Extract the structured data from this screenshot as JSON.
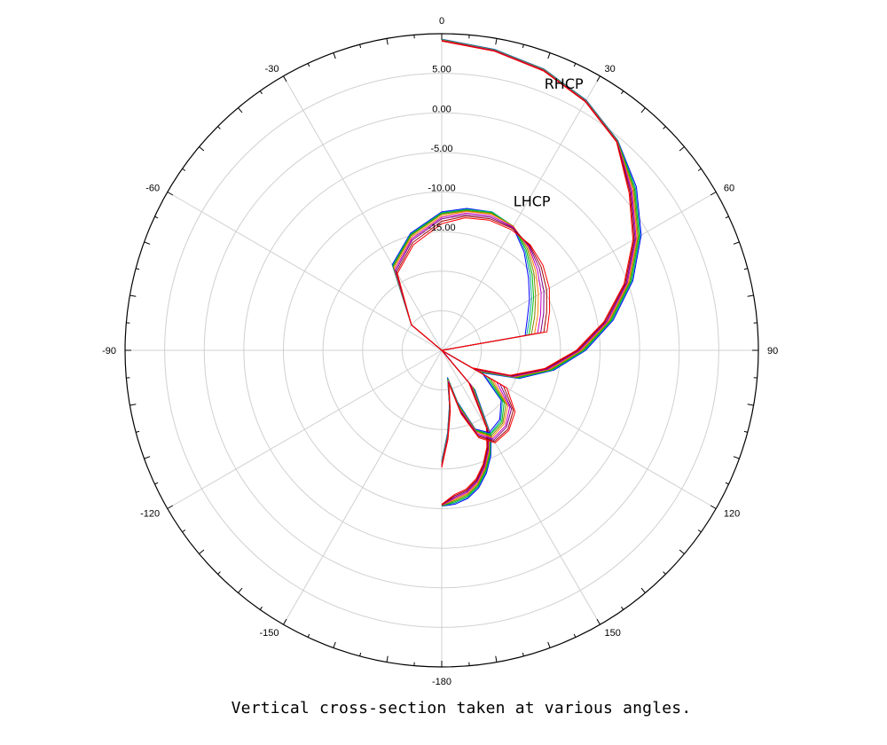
{
  "caption": "Vertical cross-section taken at various angles.",
  "chart_data": {
    "type": "polar-line",
    "title": "",
    "angle_unit": "degrees",
    "angle_direction": "clockwise",
    "zero_direction": "top",
    "angle_range": [
      -180,
      180
    ],
    "angle_tick_labels": [
      "0",
      "30",
      "60",
      "90",
      "120",
      "150",
      "-180",
      "-150",
      "-120",
      "-90",
      "-60",
      "-30"
    ],
    "angle_tick_values": [
      0,
      30,
      60,
      90,
      120,
      150,
      180,
      -150,
      -120,
      -90,
      -60,
      -30
    ],
    "radial_range": [
      -30,
      10
    ],
    "radial_tick_labels": [
      "5.00",
      "0.00",
      "-5.00",
      "-10.00",
      "-15.00"
    ],
    "radial_tick_values": [
      5,
      0,
      -5,
      -10,
      -15
    ],
    "grid": true,
    "annotations": [
      {
        "text": "RHCP",
        "angle": 25,
        "r": 6.5
      },
      {
        "text": "LHCP",
        "angle": 32,
        "r": -8.5
      }
    ],
    "series_colors": [
      "#0000ff",
      "#00a0a0",
      "#00c000",
      "#808000",
      "#ff8000",
      "#c000c0",
      "#800080",
      "#a00000",
      "#ff0000"
    ],
    "series_group_rhcp": {
      "points": [
        [
          0,
          9.3
        ],
        [
          10,
          8.6
        ],
        [
          20,
          7.8
        ],
        [
          30,
          6.5
        ],
        [
          40,
          4.6
        ],
        [
          50,
          2.1
        ],
        [
          60,
          -0.9
        ],
        [
          70,
          -4.3
        ],
        [
          80,
          -8.0
        ],
        [
          90,
          -11.8
        ],
        [
          100,
          -15.6
        ],
        [
          110,
          -19.6
        ],
        [
          120,
          -24.4
        ],
        [
          130,
          -29.8
        ],
        [
          140,
          -23.5
        ],
        [
          150,
          -17.5
        ],
        [
          155,
          -15.3
        ],
        [
          160,
          -13.5
        ],
        [
          165,
          -12.0
        ],
        [
          170,
          -11.0
        ],
        [
          175,
          -10.5
        ],
        [
          180,
          -10.3
        ]
      ],
      "series_offsets": [
        0,
        0.15,
        0.3,
        0.45,
        0.6,
        0.75,
        0.9,
        1.05,
        1.2
      ]
    },
    "series_group_lhcp": {
      "series": [
        {
          "points": [
            [
              -90,
              -30
            ],
            [
              -50,
              -25
            ],
            [
              -30,
              -17.5
            ],
            [
              -15,
              -14.7
            ],
            [
              0,
              -12.5
            ],
            [
              10,
              -11.8
            ],
            [
              20,
              -11.4
            ],
            [
              30,
              -12.0
            ],
            [
              40,
              -13.8
            ],
            [
              50,
              -15.7
            ],
            [
              60,
              -17.2
            ],
            [
              70,
              -18.5
            ],
            [
              80,
              -19.3
            ],
            [
              90,
              -30
            ],
            [
              120,
              -24.0
            ],
            [
              130,
              -20.2
            ],
            [
              140,
              -18.6
            ],
            [
              150,
              -18.0
            ],
            [
              157,
              -19.2
            ],
            [
              163,
              -23.2
            ],
            [
              168,
              -26.5
            ],
            [
              172,
              -23.0
            ],
            [
              176,
              -19.5
            ],
            [
              180,
              -16.0
            ]
          ]
        },
        {
          "points": [
            [
              -90,
              -30
            ],
            [
              -50,
              -25
            ],
            [
              -30,
              -17.6
            ],
            [
              -15,
              -14.8
            ],
            [
              0,
              -12.6
            ],
            [
              10,
              -11.9
            ],
            [
              20,
              -11.4
            ],
            [
              30,
              -11.9
            ],
            [
              40,
              -13.6
            ],
            [
              50,
              -15.4
            ],
            [
              60,
              -16.9
            ],
            [
              70,
              -18.2
            ],
            [
              80,
              -19.1
            ],
            [
              90,
              -30
            ],
            [
              120,
              -23.7
            ],
            [
              130,
              -20.0
            ],
            [
              140,
              -18.4
            ],
            [
              150,
              -17.8
            ],
            [
              157,
              -19.1
            ],
            [
              163,
              -23.0
            ],
            [
              168,
              -26.4
            ],
            [
              172,
              -22.9
            ],
            [
              176,
              -19.4
            ],
            [
              180,
              -15.9
            ]
          ]
        },
        {
          "points": [
            [
              -90,
              -30
            ],
            [
              -50,
              -25
            ],
            [
              -30,
              -17.7
            ],
            [
              -15,
              -14.9
            ],
            [
              0,
              -12.7
            ],
            [
              10,
              -12.0
            ],
            [
              20,
              -11.5
            ],
            [
              30,
              -11.9
            ],
            [
              40,
              -13.4
            ],
            [
              50,
              -15.1
            ],
            [
              60,
              -16.6
            ],
            [
              70,
              -17.9
            ],
            [
              80,
              -18.8
            ],
            [
              90,
              -30
            ],
            [
              120,
              -23.3
            ],
            [
              130,
              -19.7
            ],
            [
              140,
              -18.2
            ],
            [
              150,
              -17.7
            ],
            [
              157,
              -19.0
            ],
            [
              163,
              -22.8
            ],
            [
              168,
              -26.3
            ],
            [
              172,
              -22.8
            ],
            [
              176,
              -19.3
            ],
            [
              180,
              -15.8
            ]
          ]
        },
        {
          "points": [
            [
              -90,
              -30
            ],
            [
              -50,
              -25
            ],
            [
              -30,
              -17.8
            ],
            [
              -15,
              -15.0
            ],
            [
              0,
              -12.8
            ],
            [
              10,
              -12.1
            ],
            [
              20,
              -11.6
            ],
            [
              30,
              -11.9
            ],
            [
              40,
              -13.2
            ],
            [
              50,
              -14.8
            ],
            [
              60,
              -16.3
            ],
            [
              70,
              -17.5
            ],
            [
              80,
              -18.5
            ],
            [
              90,
              -30
            ],
            [
              120,
              -22.9
            ],
            [
              130,
              -19.4
            ],
            [
              140,
              -18.0
            ],
            [
              150,
              -17.5
            ],
            [
              157,
              -18.9
            ],
            [
              163,
              -22.6
            ],
            [
              168,
              -26.2
            ],
            [
              172,
              -22.7
            ],
            [
              176,
              -19.2
            ],
            [
              180,
              -15.7
            ]
          ]
        },
        {
          "points": [
            [
              -90,
              -30
            ],
            [
              -50,
              -25
            ],
            [
              -30,
              -18.0
            ],
            [
              -15,
              -15.2
            ],
            [
              0,
              -13.0
            ],
            [
              10,
              -12.2
            ],
            [
              20,
              -11.7
            ],
            [
              30,
              -11.9
            ],
            [
              40,
              -13.0
            ],
            [
              50,
              -14.5
            ],
            [
              60,
              -15.9
            ],
            [
              70,
              -17.1
            ],
            [
              80,
              -18.1
            ],
            [
              90,
              -30
            ],
            [
              120,
              -22.5
            ],
            [
              130,
              -19.1
            ],
            [
              140,
              -17.8
            ],
            [
              150,
              -17.3
            ],
            [
              157,
              -18.8
            ],
            [
              163,
              -22.4
            ],
            [
              168,
              -26.1
            ],
            [
              172,
              -22.6
            ],
            [
              176,
              -19.1
            ],
            [
              180,
              -15.6
            ]
          ]
        },
        {
          "points": [
            [
              -90,
              -30
            ],
            [
              -50,
              -25
            ],
            [
              -30,
              -18.2
            ],
            [
              -15,
              -15.4
            ],
            [
              0,
              -13.2
            ],
            [
              10,
              -12.4
            ],
            [
              20,
              -11.9
            ],
            [
              30,
              -12.0
            ],
            [
              40,
              -12.9
            ],
            [
              50,
              -14.2
            ],
            [
              60,
              -15.5
            ],
            [
              70,
              -16.7
            ],
            [
              80,
              -17.7
            ],
            [
              90,
              -30
            ],
            [
              120,
              -22.0
            ],
            [
              130,
              -18.8
            ],
            [
              140,
              -17.5
            ],
            [
              150,
              -17.1
            ],
            [
              157,
              -18.6
            ],
            [
              163,
              -22.2
            ],
            [
              168,
              -26.0
            ],
            [
              172,
              -22.5
            ],
            [
              176,
              -19.0
            ],
            [
              180,
              -15.5
            ]
          ]
        },
        {
          "points": [
            [
              -90,
              -30
            ],
            [
              -50,
              -25
            ],
            [
              -30,
              -18.4
            ],
            [
              -15,
              -15.6
            ],
            [
              0,
              -13.4
            ],
            [
              10,
              -12.6
            ],
            [
              20,
              -12.1
            ],
            [
              30,
              -12.1
            ],
            [
              40,
              -12.8
            ],
            [
              50,
              -13.9
            ],
            [
              60,
              -15.1
            ],
            [
              70,
              -16.3
            ],
            [
              80,
              -17.3
            ],
            [
              90,
              -30
            ],
            [
              120,
              -21.5
            ],
            [
              130,
              -18.5
            ],
            [
              140,
              -17.3
            ],
            [
              150,
              -16.9
            ],
            [
              157,
              -18.4
            ],
            [
              163,
              -22.0
            ],
            [
              168,
              -25.9
            ],
            [
              172,
              -22.4
            ],
            [
              176,
              -18.9
            ],
            [
              180,
              -15.4
            ]
          ]
        },
        {
          "points": [
            [
              -90,
              -30
            ],
            [
              -50,
              -25
            ],
            [
              -30,
              -18.6
            ],
            [
              -15,
              -15.9
            ],
            [
              0,
              -13.7
            ],
            [
              10,
              -12.8
            ],
            [
              20,
              -12.3
            ],
            [
              30,
              -12.2
            ],
            [
              40,
              -12.7
            ],
            [
              50,
              -13.6
            ],
            [
              60,
              -14.7
            ],
            [
              70,
              -15.9
            ],
            [
              80,
              -16.9
            ],
            [
              90,
              -30
            ],
            [
              120,
              -21.0
            ],
            [
              130,
              -18.2
            ],
            [
              140,
              -17.0
            ],
            [
              150,
              -16.7
            ],
            [
              157,
              -18.2
            ],
            [
              163,
              -21.8
            ],
            [
              168,
              -25.8
            ],
            [
              172,
              -22.3
            ],
            [
              176,
              -18.8
            ],
            [
              180,
              -15.3
            ]
          ]
        },
        {
          "points": [
            [
              -90,
              -30
            ],
            [
              -50,
              -25
            ],
            [
              -30,
              -18.8
            ],
            [
              -15,
              -16.2
            ],
            [
              0,
              -14.0
            ],
            [
              10,
              -13.0
            ],
            [
              20,
              -12.5
            ],
            [
              30,
              -12.4
            ],
            [
              40,
              -12.6
            ],
            [
              50,
              -13.3
            ],
            [
              60,
              -14.3
            ],
            [
              70,
              -15.5
            ],
            [
              80,
              -16.5
            ],
            [
              90,
              -30
            ],
            [
              120,
              -20.5
            ],
            [
              130,
              -17.9
            ],
            [
              140,
              -16.8
            ],
            [
              150,
              -16.5
            ],
            [
              157,
              -18.0
            ],
            [
              163,
              -21.6
            ],
            [
              168,
              -25.7
            ],
            [
              172,
              -22.2
            ],
            [
              176,
              -18.7
            ],
            [
              180,
              -15.2
            ]
          ]
        }
      ]
    }
  }
}
